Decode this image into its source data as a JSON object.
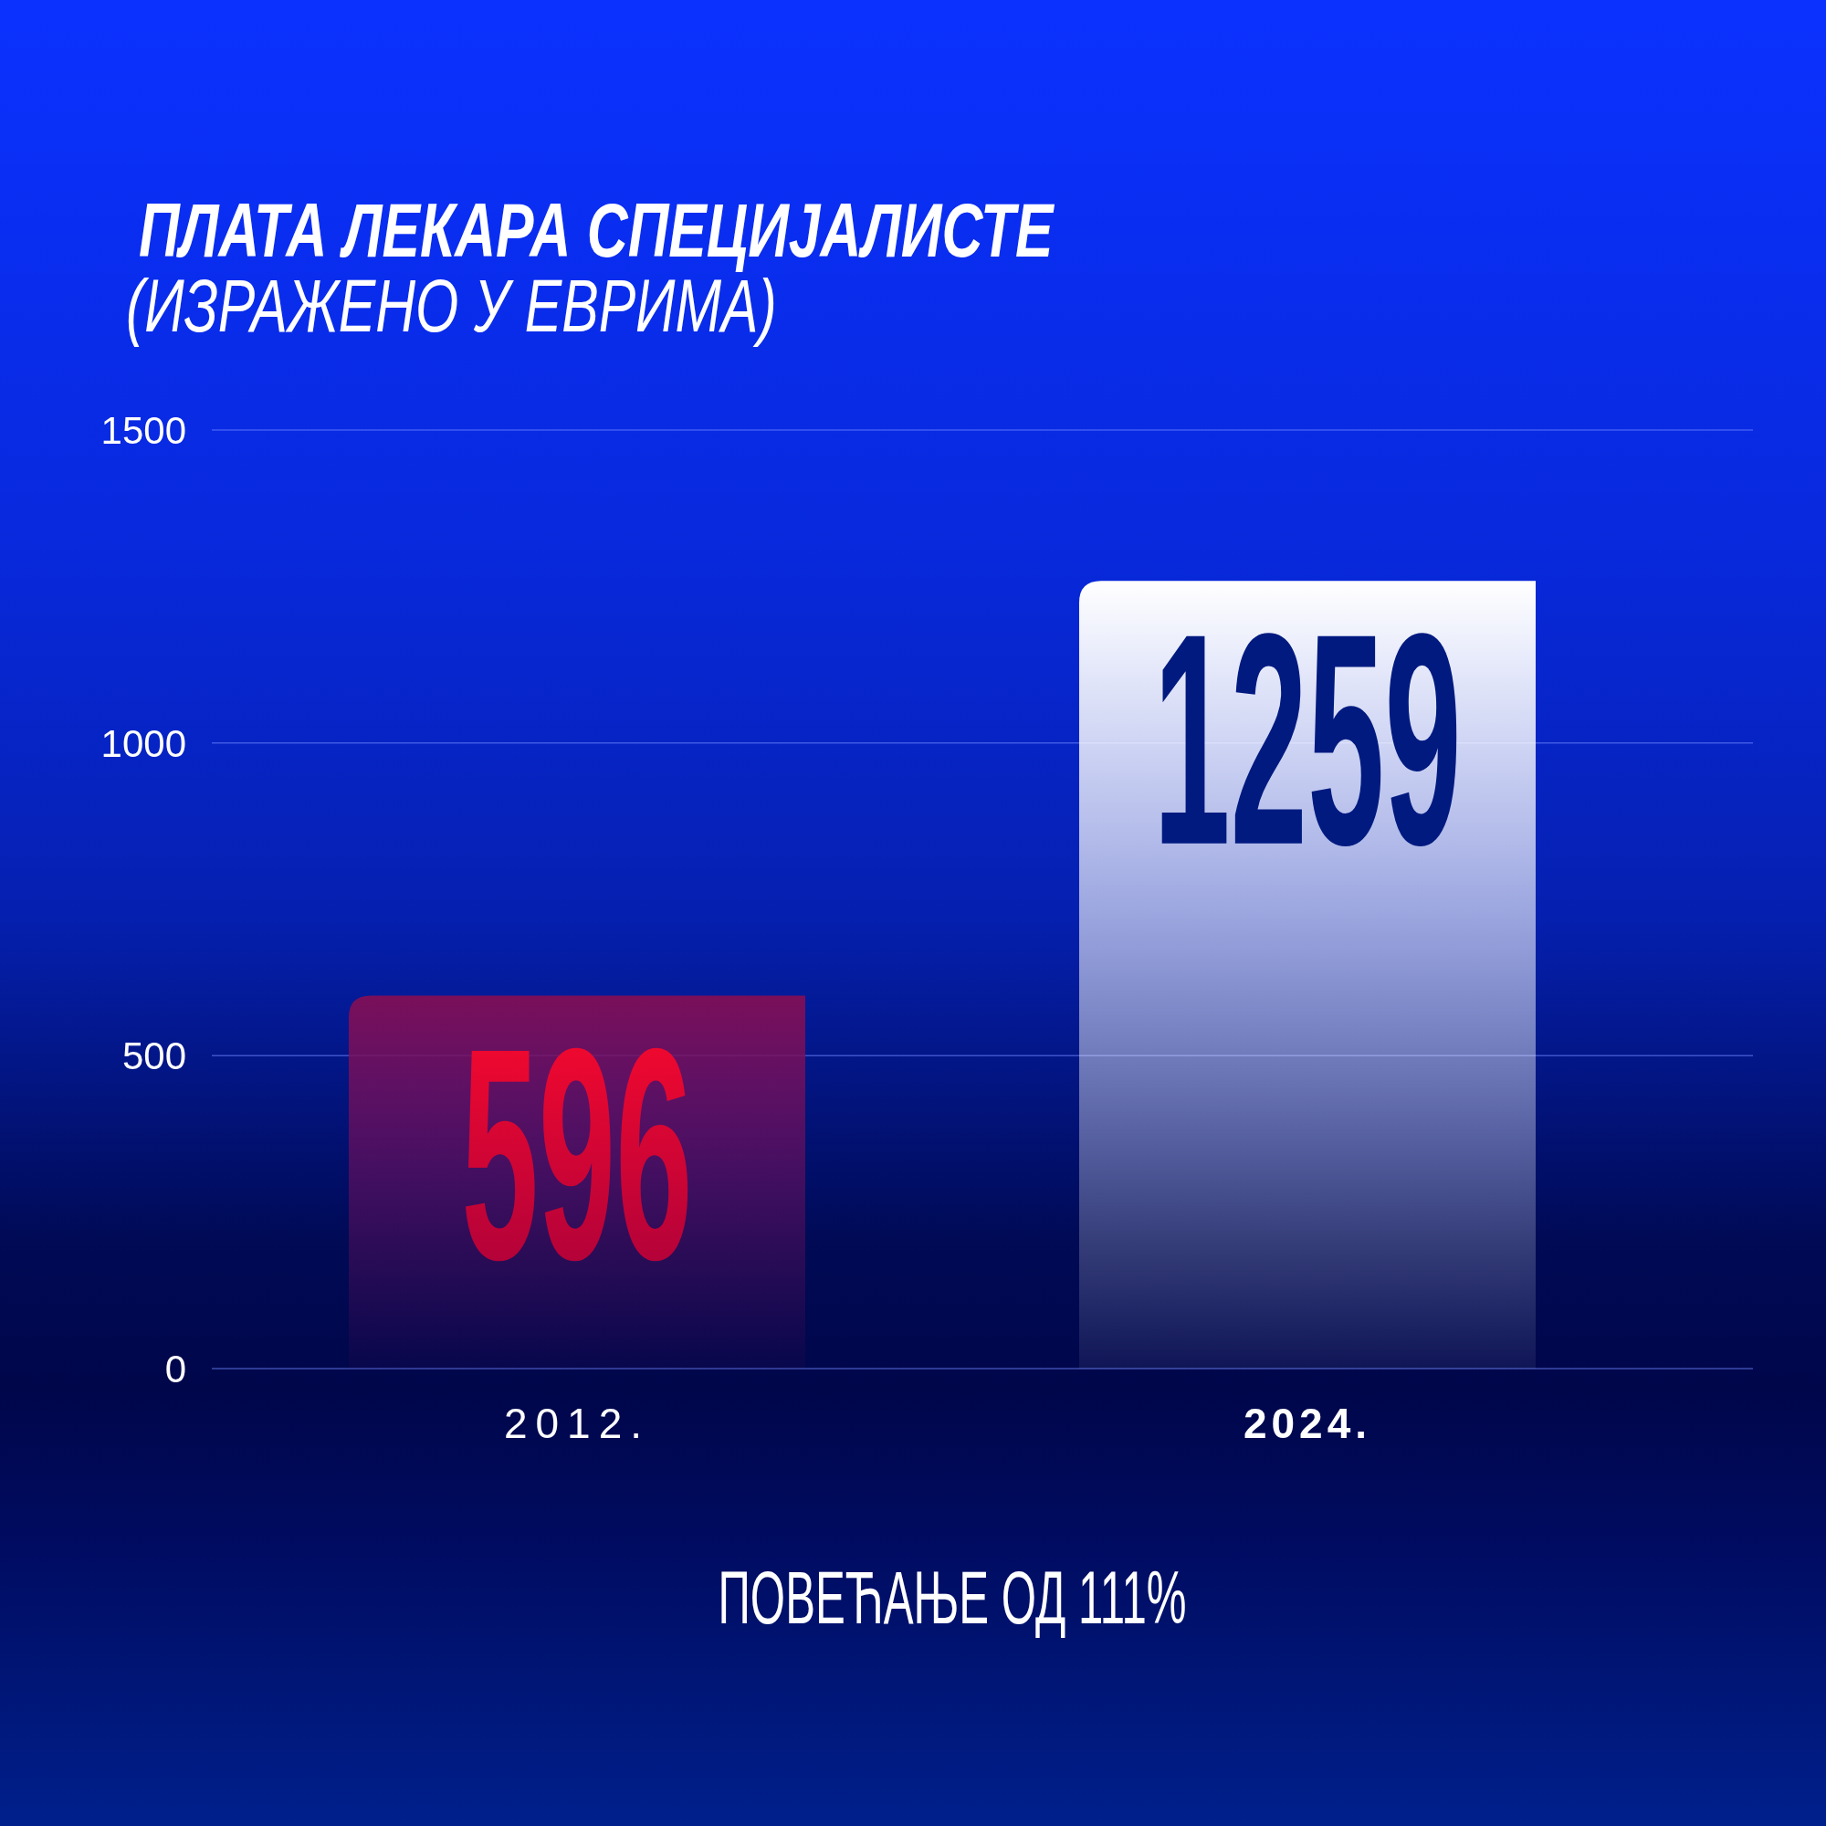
{
  "chart_data": {
    "type": "bar",
    "title": "ПЛАТА ЛЕКАРА СПЕЦИЈАЛИСТЕ",
    "subtitle": "(ИЗРАЖЕНО У ЕВРИМА)",
    "categories": [
      "2012.",
      "2024."
    ],
    "values": [
      596,
      1259
    ],
    "colors": [
      "#7a0f5a",
      "#ffffff"
    ],
    "ylim": [
      0,
      1500
    ],
    "yticks": [
      0,
      500,
      1000,
      1500
    ],
    "grid": "y",
    "data_labels": true,
    "annotations": [
      "ПОВЕЋАЊЕ ОД 111%"
    ]
  }
}
